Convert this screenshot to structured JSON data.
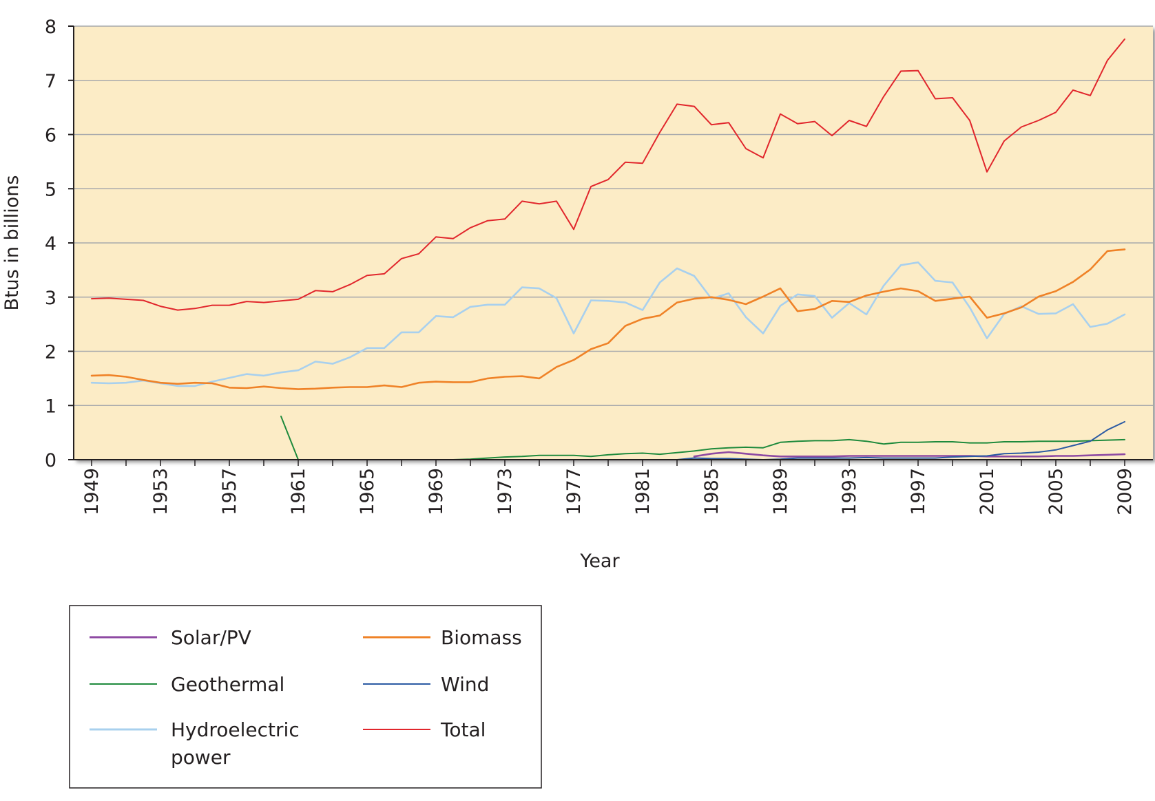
{
  "chart_data": {
    "type": "line",
    "title": "",
    "xlabel": "Year",
    "ylabel": "Btus in billions",
    "xlim": [
      1948.5,
      2009.5
    ],
    "ylim": [
      0,
      8
    ],
    "yticks": [
      "0",
      "1",
      "2",
      "3",
      "4",
      "5",
      "6",
      "7",
      "8"
    ],
    "xticks": [
      "1949",
      "1953",
      "1957",
      "1961",
      "1965",
      "1969",
      "1973",
      "1977",
      "1981",
      "1985",
      "1989",
      "1993",
      "1997",
      "2001",
      "2005",
      "2009"
    ],
    "grid": "horizontal",
    "legend_position": "bottom-left",
    "colors": {
      "plot_background": "#fcecc6",
      "grid": "#a7a9ac",
      "axis": "#231f20",
      "Solar/PV": "#8e4aa3",
      "Geothermal": "#1e8a3c",
      "Hydroelectric power": "#a8d0ee",
      "Biomass": "#ef8227",
      "Wind": "#2b5aa3",
      "Total": "#e1262c"
    },
    "legend": [
      [
        "Solar/PV",
        "Biomass"
      ],
      [
        "Geothermal",
        "Wind"
      ],
      [
        "Hydroelectric power",
        "Total"
      ]
    ],
    "series": [
      {
        "name": "Hydroelectric power",
        "x": [
          1949,
          1950,
          1951,
          1952,
          1953,
          1954,
          1955,
          1956,
          1957,
          1958,
          1959,
          1960,
          1961,
          1962,
          1963,
          1964,
          1965,
          1966,
          1967,
          1968,
          1969,
          1970,
          1971,
          1972,
          1973,
          1974,
          1975,
          1976,
          1977,
          1978,
          1979,
          1980,
          1981,
          1982,
          1983,
          1984,
          1985,
          1986,
          1987,
          1988,
          1989,
          1990,
          1991,
          1992,
          1993,
          1994,
          1995,
          1996,
          1997,
          1998,
          1999,
          2000,
          2001,
          2002,
          2003,
          2004,
          2005,
          2006,
          2007,
          2008,
          2009
        ],
        "y": [
          1.42,
          1.41,
          1.42,
          1.46,
          1.41,
          1.36,
          1.36,
          1.44,
          1.51,
          1.58,
          1.55,
          1.61,
          1.65,
          1.81,
          1.77,
          1.89,
          2.06,
          2.06,
          2.35,
          2.35,
          2.65,
          2.63,
          2.82,
          2.86,
          2.86,
          3.18,
          3.16,
          2.98,
          2.33,
          2.94,
          2.93,
          2.9,
          2.76,
          3.27,
          3.53,
          3.39,
          2.97,
          3.07,
          2.63,
          2.33,
          2.84,
          3.05,
          3.02,
          2.62,
          2.89,
          2.68,
          3.21,
          3.59,
          3.64,
          3.3,
          3.27,
          2.81,
          2.24,
          2.69,
          2.83,
          2.69,
          2.7,
          2.87,
          2.45,
          2.51,
          2.68
        ]
      },
      {
        "name": "Biomass",
        "x": [
          1949,
          1950,
          1951,
          1952,
          1953,
          1954,
          1955,
          1956,
          1957,
          1958,
          1959,
          1960,
          1961,
          1962,
          1963,
          1964,
          1965,
          1966,
          1967,
          1968,
          1969,
          1970,
          1971,
          1972,
          1973,
          1974,
          1975,
          1976,
          1977,
          1978,
          1979,
          1980,
          1981,
          1982,
          1983,
          1984,
          1985,
          1986,
          1987,
          1988,
          1989,
          1990,
          1991,
          1992,
          1993,
          1994,
          1995,
          1996,
          1997,
          1998,
          1999,
          2000,
          2001,
          2002,
          2003,
          2004,
          2005,
          2006,
          2007,
          2008,
          2009
        ],
        "y": [
          1.55,
          1.56,
          1.53,
          1.47,
          1.42,
          1.4,
          1.42,
          1.41,
          1.33,
          1.32,
          1.35,
          1.32,
          1.3,
          1.31,
          1.33,
          1.34,
          1.34,
          1.37,
          1.34,
          1.42,
          1.44,
          1.43,
          1.43,
          1.5,
          1.53,
          1.54,
          1.5,
          1.71,
          1.84,
          2.04,
          2.15,
          2.47,
          2.6,
          2.66,
          2.9,
          2.97,
          3.0,
          2.95,
          2.87,
          3.01,
          3.16,
          2.74,
          2.78,
          2.93,
          2.91,
          3.03,
          3.1,
          3.16,
          3.11,
          2.93,
          2.97,
          3.01,
          2.62,
          2.7,
          2.81,
          3.01,
          3.11,
          3.28,
          3.51,
          3.85,
          3.88
        ]
      },
      {
        "name": "Total",
        "x": [
          1949,
          1950,
          1951,
          1952,
          1953,
          1954,
          1955,
          1956,
          1957,
          1958,
          1959,
          1960,
          1961,
          1962,
          1963,
          1964,
          1965,
          1966,
          1967,
          1968,
          1969,
          1970,
          1971,
          1972,
          1973,
          1974,
          1975,
          1976,
          1977,
          1978,
          1979,
          1980,
          1981,
          1982,
          1983,
          1984,
          1985,
          1986,
          1987,
          1988,
          1989,
          1990,
          1991,
          1992,
          1993,
          1994,
          1995,
          1996,
          1997,
          1998,
          1999,
          2000,
          2001,
          2002,
          2003,
          2004,
          2005,
          2006,
          2007,
          2008,
          2009
        ],
        "y": [
          2.97,
          2.98,
          2.96,
          2.94,
          2.83,
          2.76,
          2.79,
          2.85,
          2.85,
          2.92,
          2.9,
          2.93,
          2.96,
          3.12,
          3.1,
          3.23,
          3.4,
          3.43,
          3.71,
          3.8,
          4.11,
          4.08,
          4.28,
          4.41,
          4.44,
          4.77,
          4.72,
          4.77,
          4.25,
          5.04,
          5.17,
          5.49,
          5.47,
          6.04,
          6.56,
          6.52,
          6.18,
          6.22,
          5.74,
          5.57,
          6.38,
          6.2,
          6.24,
          5.98,
          6.26,
          6.15,
          6.7,
          7.17,
          7.18,
          6.66,
          6.68,
          6.26,
          5.31,
          5.88,
          6.14,
          6.26,
          6.41,
          6.82,
          6.72,
          7.37,
          7.76
        ]
      },
      {
        "name": "Geothermal",
        "x": [
          1960,
          1961,
          1962,
          1963,
          1964,
          1965,
          1966,
          1967,
          1968,
          1969,
          1970,
          1971,
          1972,
          1973,
          1974,
          1975,
          1976,
          1977,
          1978,
          1979,
          1980,
          1981,
          1982,
          1983,
          1984,
          1985,
          1986,
          1987,
          1988,
          1989,
          1990,
          1991,
          1992,
          1993,
          1994,
          1995,
          1996,
          1997,
          1998,
          1999,
          2000,
          2001,
          2002,
          2003,
          2004,
          2005,
          2006,
          2007,
          2008,
          2009
        ],
        "y": [
          0.8,
          0.0,
          0.0,
          0.0,
          0.0,
          0.0,
          0.0,
          0.0,
          0.0,
          0.0,
          0.0,
          0.01,
          0.03,
          0.05,
          0.06,
          0.08,
          0.08,
          0.08,
          0.06,
          0.09,
          0.11,
          0.12,
          0.1,
          0.13,
          0.16,
          0.2,
          0.22,
          0.23,
          0.22,
          0.32,
          0.34,
          0.35,
          0.35,
          0.37,
          0.34,
          0.29,
          0.32,
          0.32,
          0.33,
          0.33,
          0.31,
          0.31,
          0.33,
          0.33,
          0.34,
          0.34,
          0.34,
          0.35,
          0.36,
          0.37
        ]
      },
      {
        "name": "Solar/PV",
        "x": [
          1984,
          1985,
          1986,
          1987,
          1988,
          1989,
          1990,
          1991,
          1992,
          1993,
          1994,
          1995,
          1996,
          1997,
          1998,
          1999,
          2000,
          2001,
          2002,
          2003,
          2004,
          2005,
          2006,
          2007,
          2008,
          2009
        ],
        "y": [
          0.06,
          0.11,
          0.14,
          0.11,
          0.08,
          0.06,
          0.06,
          0.06,
          0.06,
          0.07,
          0.07,
          0.07,
          0.07,
          0.07,
          0.07,
          0.07,
          0.07,
          0.06,
          0.06,
          0.06,
          0.06,
          0.07,
          0.07,
          0.08,
          0.09,
          0.1
        ]
      },
      {
        "name": "Wind",
        "x": [
          1983,
          1984,
          1985,
          1986,
          1987,
          1988,
          1989,
          1990,
          1991,
          1992,
          1993,
          1994,
          1995,
          1996,
          1997,
          1998,
          1999,
          2000,
          2001,
          2002,
          2003,
          2004,
          2005,
          2006,
          2007,
          2008,
          2009
        ],
        "y": [
          0.0,
          0.03,
          0.02,
          0.02,
          0.01,
          0.0,
          0.01,
          0.03,
          0.03,
          0.03,
          0.03,
          0.04,
          0.03,
          0.03,
          0.03,
          0.03,
          0.05,
          0.06,
          0.07,
          0.11,
          0.12,
          0.14,
          0.18,
          0.26,
          0.34,
          0.55,
          0.7
        ]
      }
    ]
  }
}
